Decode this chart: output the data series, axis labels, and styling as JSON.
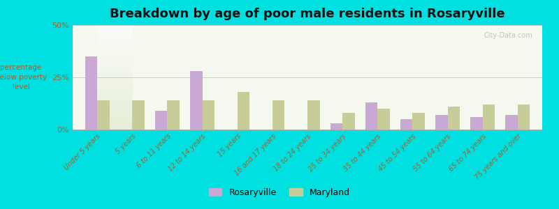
{
  "title": "Breakdown by age of poor male residents in Rosaryville",
  "ylabel": "percentage\nbelow poverty\nlevel",
  "categories": [
    "Under 5 years",
    "5 years",
    "6 to 11 years",
    "12 to 14 years",
    "15 years",
    "16 and 17 years",
    "18 to 24 years",
    "25 to 34 years",
    "35 to 44 years",
    "45 to 54 years",
    "55 to 64 years",
    "65 to 74 years",
    "75 years and over"
  ],
  "rosaryville_values": [
    35,
    0,
    9,
    28,
    0,
    0,
    0,
    3,
    13,
    5,
    7,
    6,
    7
  ],
  "maryland_values": [
    14,
    14,
    14,
    14,
    18,
    14,
    14,
    8,
    10,
    8,
    11,
    12,
    12
  ],
  "rosaryville_color": "#c9a8d4",
  "maryland_color": "#c8cc99",
  "background_color": "#00e0e0",
  "plot_bg_color": "#f5f8ee",
  "ylim": [
    0,
    50
  ],
  "yticks": [
    0,
    25,
    50
  ],
  "ytick_labels": [
    "0%",
    "25%",
    "50%"
  ],
  "legend_rosaryville": "Rosaryville",
  "legend_maryland": "Maryland",
  "title_fontsize": 13,
  "bar_width": 0.35,
  "tick_label_color": "#996633",
  "ylabel_color": "#996633",
  "watermark": "City-Data.com"
}
